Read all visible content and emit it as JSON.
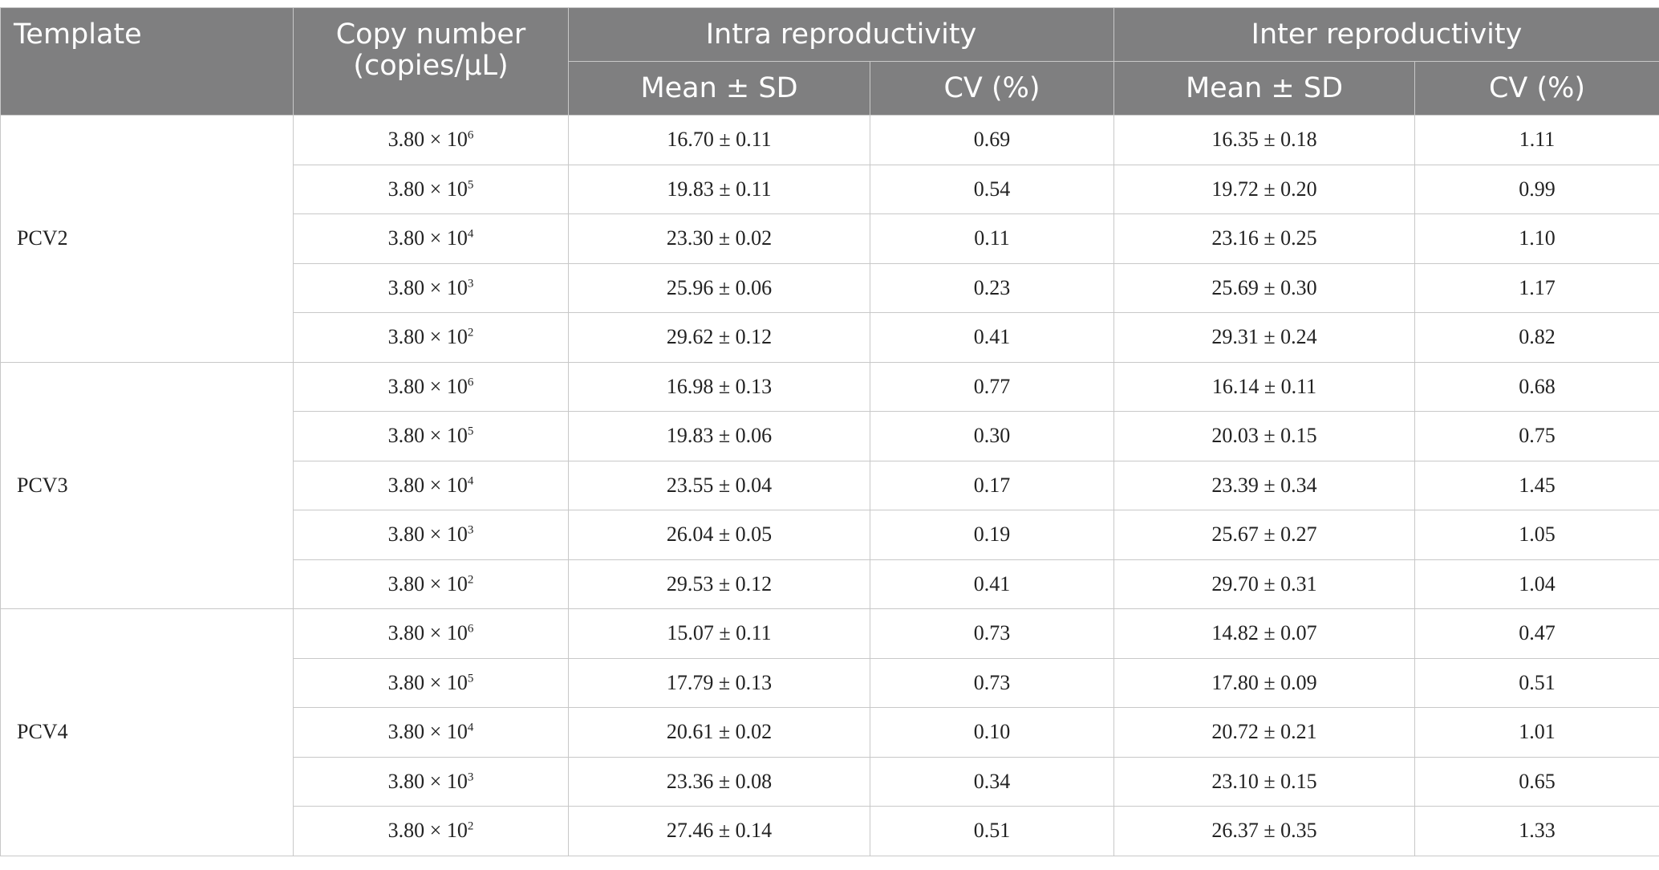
{
  "table": {
    "header": {
      "template": "Template",
      "copy_number": "Copy number (copies/μL)",
      "intra": "Intra reproductivity",
      "inter": "Inter reproductivity",
      "intra_mean": "Mean ± SD",
      "intra_cv": "CV (%)",
      "inter_mean": "Mean ± SD",
      "inter_cv": "CV (%)"
    },
    "groups": [
      {
        "template": "PCV2",
        "rows": [
          {
            "copy": "3.80 × 10",
            "exp": "6",
            "intra_mean": "16.70 ± 0.11",
            "intra_cv": "0.69",
            "inter_mean": "16.35 ± 0.18",
            "inter_cv": "1.11"
          },
          {
            "copy": "3.80 × 10",
            "exp": "5",
            "intra_mean": "19.83 ± 0.11",
            "intra_cv": "0.54",
            "inter_mean": "19.72 ± 0.20",
            "inter_cv": "0.99"
          },
          {
            "copy": "3.80 × 10",
            "exp": "4",
            "intra_mean": "23.30 ± 0.02",
            "intra_cv": "0.11",
            "inter_mean": "23.16 ± 0.25",
            "inter_cv": "1.10"
          },
          {
            "copy": "3.80 × 10",
            "exp": "3",
            "intra_mean": "25.96 ± 0.06",
            "intra_cv": "0.23",
            "inter_mean": "25.69 ± 0.30",
            "inter_cv": "1.17"
          },
          {
            "copy": "3.80 × 10",
            "exp": "2",
            "intra_mean": "29.62 ± 0.12",
            "intra_cv": "0.41",
            "inter_mean": "29.31 ± 0.24",
            "inter_cv": "0.82"
          }
        ]
      },
      {
        "template": "PCV3",
        "rows": [
          {
            "copy": "3.80 × 10",
            "exp": "6",
            "intra_mean": "16.98 ± 0.13",
            "intra_cv": "0.77",
            "inter_mean": "16.14 ± 0.11",
            "inter_cv": "0.68"
          },
          {
            "copy": "3.80 × 10",
            "exp": "5",
            "intra_mean": "19.83 ± 0.06",
            "intra_cv": "0.30",
            "inter_mean": "20.03 ± 0.15",
            "inter_cv": "0.75"
          },
          {
            "copy": "3.80 × 10",
            "exp": "4",
            "intra_mean": "23.55 ± 0.04",
            "intra_cv": "0.17",
            "inter_mean": "23.39 ± 0.34",
            "inter_cv": "1.45"
          },
          {
            "copy": "3.80 × 10",
            "exp": "3",
            "intra_mean": "26.04 ± 0.05",
            "intra_cv": "0.19",
            "inter_mean": "25.67 ± 0.27",
            "inter_cv": "1.05"
          },
          {
            "copy": "3.80 × 10",
            "exp": "2",
            "intra_mean": "29.53 ± 0.12",
            "intra_cv": "0.41",
            "inter_mean": "29.70 ± 0.31",
            "inter_cv": "1.04"
          }
        ]
      },
      {
        "template": "PCV4",
        "rows": [
          {
            "copy": "3.80 × 10",
            "exp": "6",
            "intra_mean": "15.07 ± 0.11",
            "intra_cv": "0.73",
            "inter_mean": "14.82 ± 0.07",
            "inter_cv": "0.47"
          },
          {
            "copy": "3.80 × 10",
            "exp": "5",
            "intra_mean": "17.79 ± 0.13",
            "intra_cv": "0.73",
            "inter_mean": "17.80 ± 0.09",
            "inter_cv": "0.51"
          },
          {
            "copy": "3.80 × 10",
            "exp": "4",
            "intra_mean": "20.61 ± 0.02",
            "intra_cv": "0.10",
            "inter_mean": "20.72 ± 0.21",
            "inter_cv": "1.01"
          },
          {
            "copy": "3.80 × 10",
            "exp": "3",
            "intra_mean": "23.36 ± 0.08",
            "intra_cv": "0.34",
            "inter_mean": "23.10 ± 0.15",
            "inter_cv": "0.65"
          },
          {
            "copy": "3.80 × 10",
            "exp": "2",
            "intra_mean": "27.46 ± 0.14",
            "intra_cv": "0.51",
            "inter_mean": "26.37 ± 0.35",
            "inter_cv": "1.33"
          }
        ]
      }
    ]
  }
}
